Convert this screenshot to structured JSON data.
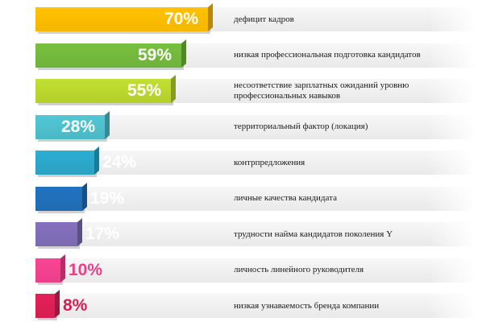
{
  "chart_data": {
    "type": "bar",
    "orientation": "horizontal",
    "title": "",
    "xlabel": "",
    "ylabel": "",
    "xlim": [
      0,
      100
    ],
    "grid": false,
    "legend": "none",
    "categories": [
      "дефицит кадров",
      "низкая профессиональная подготовка кандидатов",
      "несоответствие зарплатных ожиданий уровню профессиональных навыков",
      "территориальный фактор (локация)",
      "контрпредложения",
      "личные качества кандидата",
      "трудности найма кандидатов поколения Y",
      "личность линейного руководителя",
      "низкая узнаваемость бренда компании"
    ],
    "values": [
      70,
      59,
      55,
      28,
      24,
      19,
      17,
      10,
      8
    ],
    "value_labels": [
      "70%",
      "59%",
      "55%",
      "28%",
      "24%",
      "19%",
      "17%",
      "10%",
      "8%"
    ],
    "colors": [
      "#f7b500",
      "#6fb23a",
      "#b4cf2c",
      "#4bb8c5",
      "#2aa1c2",
      "#1f6bb3",
      "#7b69b0",
      "#e93f8a",
      "#d41e52"
    ],
    "value_label_colors": [
      "#ffffff",
      "#ffffff",
      "#ffffff",
      "#ffffff",
      "#ffffff",
      "#ffffff",
      "#ffffff",
      "#e93f8a",
      "#d41e52"
    ]
  }
}
